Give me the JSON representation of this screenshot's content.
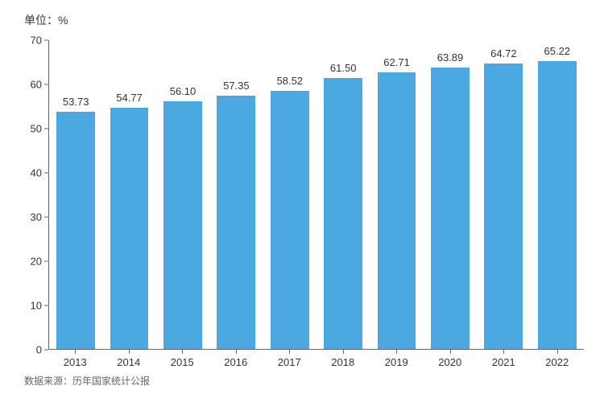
{
  "chart": {
    "type": "bar",
    "unit_label": "单位：%",
    "source": "数据来源：历年国家统计公报",
    "categories": [
      "2013",
      "2014",
      "2015",
      "2016",
      "2017",
      "2018",
      "2019",
      "2020",
      "2021",
      "2022"
    ],
    "values": [
      53.73,
      54.77,
      56.1,
      57.35,
      58.52,
      61.5,
      62.71,
      63.89,
      64.72,
      65.22
    ],
    "value_labels": [
      "53.73",
      "54.77",
      "56.10",
      "57.35",
      "58.52",
      "61.50",
      "62.71",
      "63.89",
      "64.72",
      "65.22"
    ],
    "bar_color": "#4ba8e0",
    "ylim": [
      0,
      70
    ],
    "ytick_step": 10,
    "yticks": [
      0,
      10,
      20,
      30,
      40,
      50,
      60,
      70
    ],
    "background_color": "#ffffff",
    "axis_color": "#666666",
    "text_color": "#333333",
    "bar_width_ratio": 0.72,
    "label_fontsize": 13,
    "value_label_fontsize": 13,
    "unit_fontsize": 14,
    "source_fontsize": 12
  }
}
